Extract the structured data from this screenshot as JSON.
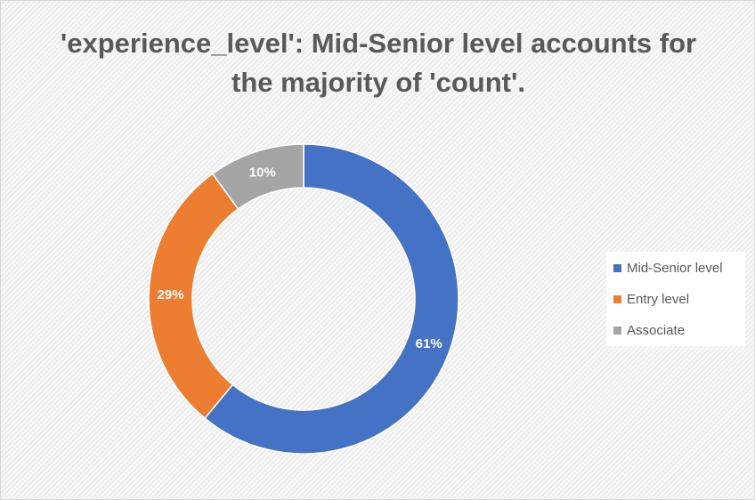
{
  "chart_data": {
    "type": "pie",
    "variant": "doughnut",
    "title": "'experience_level': Mid-Senior level accounts for the majority of 'count'.",
    "categories": [
      "Mid-Senior level",
      "Entry level",
      "Associate"
    ],
    "values": [
      61,
      29,
      10
    ],
    "data_labels": [
      "61%",
      "29%",
      "10%"
    ],
    "colors": [
      "#4472c4",
      "#ed7d31",
      "#a5a5a5"
    ],
    "legend_position": "right"
  }
}
